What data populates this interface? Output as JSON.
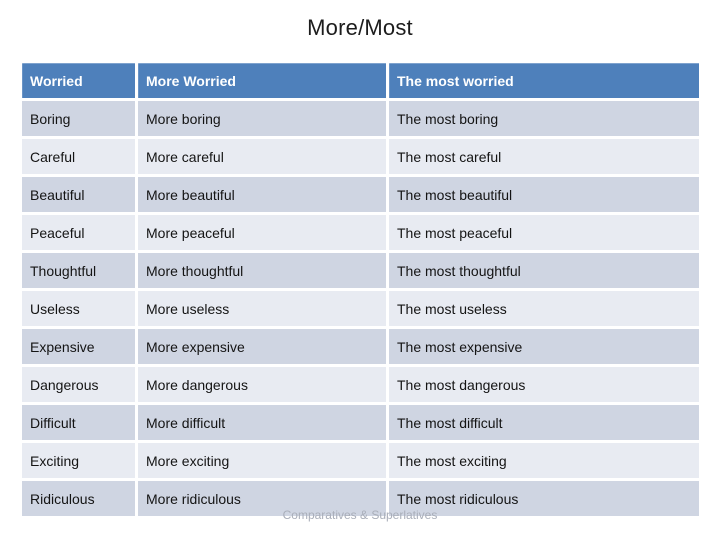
{
  "slide": {
    "title": "More/Most",
    "footer": "Comparatives & Superlatives"
  },
  "table": {
    "headers": [
      "Worried",
      "More Worried",
      "The most worried"
    ],
    "rows": [
      {
        "cells": [
          "Boring",
          "More boring",
          "The most boring"
        ]
      },
      {
        "cells": [
          "Careful",
          "More careful",
          "The most careful"
        ]
      },
      {
        "cells": [
          "Beautiful",
          "More beautiful",
          "The most beautiful"
        ]
      },
      {
        "cells": [
          "Peaceful",
          "More peaceful",
          "The most peaceful"
        ]
      },
      {
        "cells": [
          "Thoughtful",
          "More thoughtful",
          "The most thoughtful"
        ]
      },
      {
        "cells": [
          "Useless",
          "More useless",
          "The most useless"
        ]
      },
      {
        "cells": [
          "Expensive",
          "More expensive",
          "The most expensive"
        ]
      },
      {
        "cells": [
          "Dangerous",
          "More dangerous",
          "The most dangerous"
        ]
      },
      {
        "cells": [
          "Difficult",
          "More difficult",
          "The most difficult"
        ]
      },
      {
        "cells": [
          "Exciting",
          "More exciting",
          "The most exciting"
        ]
      },
      {
        "cells": [
          "Ridiculous",
          "More ridiculous",
          "The most ridiculous"
        ]
      }
    ]
  },
  "colors": {
    "header_bg": "#4E80BB",
    "header_text": "#FFFFFF",
    "band_dark": "#CFD5E2",
    "band_light": "#E8EBF2",
    "body_text": "#141414",
    "footer_text": "#A9AEB9"
  }
}
